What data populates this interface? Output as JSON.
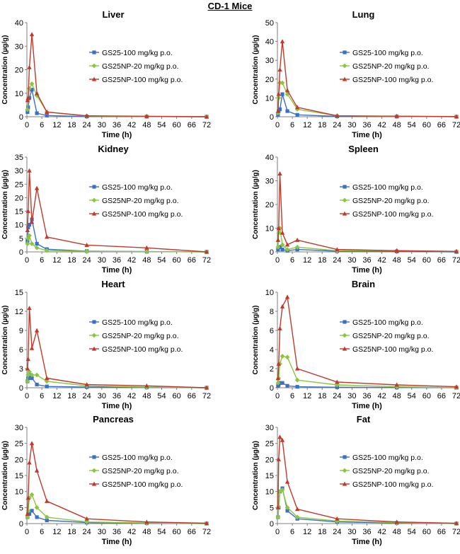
{
  "figure_title": "CD-1 Mice",
  "colors": {
    "GS25-100": "#3b6fc6",
    "GS25NP-20": "#8cc63f",
    "GS25NP-100": "#c0392b",
    "axis": "#808080"
  },
  "chart_data": [
    {
      "type": "line",
      "title": "Liver",
      "xlabel": "Time (h)",
      "ylabel": "Concentration (µg/g)",
      "xlim": [
        0,
        72
      ],
      "xticks": [
        0,
        6,
        12,
        18,
        24,
        30,
        36,
        42,
        48,
        54,
        60,
        66,
        72
      ],
      "ylim": [
        0,
        40
      ],
      "yticks": [
        0,
        10,
        20,
        30,
        40
      ],
      "legend": "top-right",
      "grid": false,
      "series": [
        {
          "name": "GS25-100 mg/kg p.o.",
          "color": "#3b6fc6",
          "marker": "square",
          "x": [
            0.25,
            0.5,
            1,
            2,
            4,
            8,
            24,
            48,
            72
          ],
          "y": [
            2,
            4,
            8,
            11.5,
            1.5,
            0.5,
            0.1,
            0.05,
            0
          ]
        },
        {
          "name": "GS25NP-20 mg/kg p.o.",
          "color": "#8cc63f",
          "marker": "diamond",
          "x": [
            0.25,
            0.5,
            1,
            2,
            4,
            8,
            24,
            48,
            72
          ],
          "y": [
            3,
            7,
            12,
            14,
            9,
            2,
            0.3,
            0.1,
            0
          ]
        },
        {
          "name": "GS25NP-100 mg/kg p.o.",
          "color": "#c0392b",
          "marker": "triangle",
          "x": [
            0.25,
            0.5,
            1,
            2,
            4,
            8,
            24,
            48,
            72
          ],
          "y": [
            7,
            8,
            21,
            35,
            10,
            2,
            0.4,
            0.2,
            0
          ]
        }
      ]
    },
    {
      "type": "line",
      "title": "Lung",
      "xlabel": "Time (h)",
      "ylabel": "Concentration (µg/g)",
      "xlim": [
        0,
        72
      ],
      "xticks": [
        0,
        6,
        12,
        18,
        24,
        30,
        36,
        42,
        48,
        54,
        60,
        66,
        72
      ],
      "ylim": [
        0,
        50
      ],
      "yticks": [
        0,
        10,
        20,
        30,
        40,
        50
      ],
      "legend": "top-right",
      "grid": false,
      "series": [
        {
          "name": "GS25-100 mg/kg p.o.",
          "color": "#3b6fc6",
          "marker": "square",
          "x": [
            0.25,
            0.5,
            1,
            2,
            4,
            8,
            24,
            48,
            72
          ],
          "y": [
            1,
            3,
            4,
            12,
            3,
            1,
            0.2,
            0.1,
            0
          ]
        },
        {
          "name": "GS25NP-20 mg/kg p.o.",
          "color": "#8cc63f",
          "marker": "diamond",
          "x": [
            0.25,
            0.5,
            1,
            2,
            4,
            8,
            24,
            48,
            72
          ],
          "y": [
            2,
            10,
            18,
            18,
            12,
            4,
            0.5,
            0.2,
            0
          ]
        },
        {
          "name": "GS25NP-100 mg/kg p.o.",
          "color": "#c0392b",
          "marker": "triangle",
          "x": [
            0.25,
            0.5,
            1,
            2,
            4,
            8,
            24,
            48,
            72
          ],
          "y": [
            3,
            12,
            25,
            40,
            14,
            5,
            0.5,
            0.3,
            0.1
          ]
        }
      ]
    },
    {
      "type": "line",
      "title": "Kidney",
      "xlabel": "Time (h)",
      "ylabel": "Concentration (µg/g)",
      "xlim": [
        0,
        72
      ],
      "xticks": [
        0,
        6,
        12,
        18,
        24,
        30,
        36,
        42,
        48,
        54,
        60,
        66,
        72
      ],
      "ylim": [
        0,
        35
      ],
      "yticks": [
        0,
        5,
        10,
        15,
        20,
        25,
        30,
        35
      ],
      "legend": "top-right",
      "grid": false,
      "series": [
        {
          "name": "GS25-100 mg/kg p.o.",
          "color": "#3b6fc6",
          "marker": "square",
          "x": [
            0.25,
            0.5,
            1,
            2,
            4,
            8,
            24,
            48,
            72
          ],
          "y": [
            4,
            9,
            10,
            12,
            3,
            1,
            0.3,
            0.1,
            0
          ]
        },
        {
          "name": "GS25NP-20 mg/kg p.o.",
          "color": "#8cc63f",
          "marker": "diamond",
          "x": [
            0.25,
            0.5,
            1,
            2,
            4,
            8,
            24,
            48,
            72
          ],
          "y": [
            3,
            5,
            6,
            3,
            1.5,
            0.5,
            0.2,
            0.1,
            0
          ]
        },
        {
          "name": "GS25NP-100 mg/kg p.o.",
          "color": "#c0392b",
          "marker": "triangle",
          "x": [
            0.25,
            0.5,
            1,
            2,
            4,
            8,
            24,
            48,
            72
          ],
          "y": [
            8,
            15,
            30,
            11,
            23.5,
            5.5,
            2.5,
            1.5,
            0
          ]
        }
      ]
    },
    {
      "type": "line",
      "title": "Spleen",
      "xlabel": "Time (h)",
      "ylabel": "Concentration (µg/g)",
      "xlim": [
        0,
        72
      ],
      "xticks": [
        0,
        6,
        12,
        18,
        24,
        30,
        36,
        42,
        48,
        54,
        60,
        66,
        72
      ],
      "ylim": [
        0,
        40
      ],
      "yticks": [
        0,
        10,
        20,
        30,
        40
      ],
      "legend": "top-right",
      "grid": false,
      "series": [
        {
          "name": "GS25-100 mg/kg p.o.",
          "color": "#3b6fc6",
          "marker": "square",
          "x": [
            0.25,
            0.5,
            1,
            2,
            4,
            8,
            24,
            48,
            72
          ],
          "y": [
            1,
            2,
            2,
            1,
            0.5,
            1,
            0.3,
            0.2,
            0
          ]
        },
        {
          "name": "GS25NP-20 mg/kg p.o.",
          "color": "#8cc63f",
          "marker": "diamond",
          "x": [
            0.25,
            0.5,
            1,
            2,
            4,
            8,
            24,
            48,
            72
          ],
          "y": [
            2,
            8,
            10,
            3,
            1,
            2,
            0.5,
            0.5,
            0.2
          ]
        },
        {
          "name": "GS25NP-100 mg/kg p.o.",
          "color": "#c0392b",
          "marker": "triangle",
          "x": [
            0.25,
            0.5,
            1,
            2,
            4,
            8,
            24,
            48,
            72
          ],
          "y": [
            5,
            10,
            33,
            8,
            3,
            5,
            1,
            0.5,
            0.2
          ]
        }
      ]
    },
    {
      "type": "line",
      "title": "Heart",
      "xlabel": "Time (h)",
      "ylabel": "Concentration (µg/g)",
      "xlim": [
        0,
        72
      ],
      "xticks": [
        0,
        6,
        12,
        18,
        24,
        30,
        36,
        42,
        48,
        54,
        60,
        66,
        72
      ],
      "ylim": [
        0,
        15
      ],
      "yticks": [
        0,
        3,
        6,
        9,
        12,
        15
      ],
      "legend": "top-right",
      "grid": false,
      "series": [
        {
          "name": "GS25-100 mg/kg p.o.",
          "color": "#3b6fc6",
          "marker": "square",
          "x": [
            0.25,
            0.5,
            1,
            2,
            4,
            8,
            24,
            48,
            72
          ],
          "y": [
            1,
            1.5,
            2,
            1.5,
            0.5,
            0.2,
            0.1,
            0.05,
            0
          ]
        },
        {
          "name": "GS25NP-20 mg/kg p.o.",
          "color": "#8cc63f",
          "marker": "diamond",
          "x": [
            0.25,
            0.5,
            1,
            2,
            4,
            8,
            24,
            48,
            72
          ],
          "y": [
            1,
            2,
            2.5,
            2,
            2,
            1,
            0.3,
            0.1,
            0
          ]
        },
        {
          "name": "GS25NP-100 mg/kg p.o.",
          "color": "#c0392b",
          "marker": "triangle",
          "x": [
            0.25,
            0.5,
            1,
            2,
            4,
            8,
            24,
            48,
            72
          ],
          "y": [
            3,
            4.5,
            12.5,
            6.2,
            9,
            1.5,
            0.5,
            0.3,
            0
          ]
        }
      ]
    },
    {
      "type": "line",
      "title": "Brain",
      "xlabel": "Time (h)",
      "ylabel": "Concentration (µg/g)",
      "xlim": [
        0,
        72
      ],
      "xticks": [
        0,
        6,
        12,
        18,
        24,
        30,
        36,
        42,
        48,
        54,
        60,
        66,
        72
      ],
      "ylim": [
        0,
        10
      ],
      "yticks": [
        0,
        2,
        4,
        6,
        8,
        10
      ],
      "legend": "top-right",
      "grid": false,
      "series": [
        {
          "name": "GS25-100 mg/kg p.o.",
          "color": "#3b6fc6",
          "marker": "square",
          "x": [
            0.25,
            0.5,
            1,
            2,
            4,
            8,
            24,
            48,
            72
          ],
          "y": [
            0.2,
            0.3,
            0.5,
            0.5,
            0.2,
            0.1,
            0.05,
            0.02,
            0
          ]
        },
        {
          "name": "GS25NP-20 mg/kg p.o.",
          "color": "#8cc63f",
          "marker": "diamond",
          "x": [
            0.25,
            0.5,
            1,
            2,
            4,
            8,
            24,
            48,
            72
          ],
          "y": [
            0.5,
            1,
            2.5,
            3.3,
            3.2,
            0.8,
            0.3,
            0.1,
            0
          ]
        },
        {
          "name": "GS25NP-100 mg/kg p.o.",
          "color": "#c0392b",
          "marker": "triangle",
          "x": [
            0.25,
            0.5,
            1,
            2,
            4,
            8,
            24,
            48,
            72
          ],
          "y": [
            1,
            2.5,
            6.2,
            8.5,
            9.5,
            2,
            0.6,
            0.3,
            0.1
          ]
        }
      ]
    },
    {
      "type": "line",
      "title": "Pancreas",
      "xlabel": "Time (h)",
      "ylabel": "Concentration (µg/g)",
      "xlim": [
        0,
        72
      ],
      "xticks": [
        0,
        6,
        12,
        18,
        24,
        30,
        36,
        42,
        48,
        54,
        60,
        66,
        72
      ],
      "ylim": [
        0,
        30
      ],
      "yticks": [
        0,
        5,
        10,
        15,
        20,
        25,
        30
      ],
      "legend": "top-right",
      "grid": false,
      "series": [
        {
          "name": "GS25-100 mg/kg p.o.",
          "color": "#3b6fc6",
          "marker": "square",
          "x": [
            0.25,
            0.5,
            1,
            2,
            4,
            8,
            24,
            48,
            72
          ],
          "y": [
            2,
            3,
            3,
            4,
            2,
            1,
            0.3,
            0.1,
            0
          ]
        },
        {
          "name": "GS25NP-20 mg/kg p.o.",
          "color": "#8cc63f",
          "marker": "diamond",
          "x": [
            0.25,
            0.5,
            1,
            2,
            4,
            8,
            24,
            48,
            72
          ],
          "y": [
            2,
            4,
            8,
            9,
            5,
            2,
            0.5,
            0.2,
            0
          ]
        },
        {
          "name": "GS25NP-100 mg/kg p.o.",
          "color": "#c0392b",
          "marker": "triangle",
          "x": [
            0.25,
            0.5,
            1,
            2,
            4,
            8,
            24,
            48,
            72
          ],
          "y": [
            3,
            8,
            19,
            25,
            16.5,
            7,
            1.5,
            0.5,
            0.1
          ]
        }
      ]
    },
    {
      "type": "line",
      "title": "Fat",
      "xlabel": "Time (h)",
      "ylabel": "Concentration (µg/g)",
      "xlim": [
        0,
        72
      ],
      "xticks": [
        0,
        6,
        12,
        18,
        24,
        30,
        36,
        42,
        48,
        54,
        60,
        66,
        72
      ],
      "ylim": [
        0,
        30
      ],
      "yticks": [
        0,
        5,
        10,
        15,
        20,
        25,
        30
      ],
      "legend": "top-right",
      "grid": false,
      "series": [
        {
          "name": "GS25-100 mg/kg p.o.",
          "color": "#3b6fc6",
          "marker": "square",
          "x": [
            0.25,
            0.5,
            1,
            2,
            4,
            8,
            24,
            48,
            72
          ],
          "y": [
            2,
            5,
            10,
            11,
            4,
            1.5,
            0.5,
            0.2,
            0
          ]
        },
        {
          "name": "GS25NP-20 mg/kg p.o.",
          "color": "#8cc63f",
          "marker": "diamond",
          "x": [
            0.25,
            0.5,
            1,
            2,
            4,
            8,
            24,
            48,
            72
          ],
          "y": [
            2,
            5,
            10,
            10.5,
            5,
            2,
            0.8,
            0.3,
            0
          ]
        },
        {
          "name": "GS25NP-100 mg/kg p.o.",
          "color": "#c0392b",
          "marker": "triangle",
          "x": [
            0.25,
            0.5,
            1,
            2,
            4,
            8,
            24,
            48,
            72
          ],
          "y": [
            5,
            20,
            27,
            26,
            13,
            4.5,
            1.5,
            0.5,
            0.1
          ]
        }
      ]
    }
  ]
}
